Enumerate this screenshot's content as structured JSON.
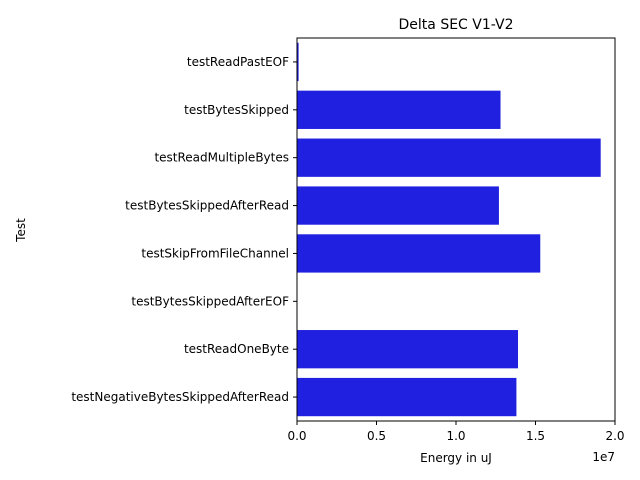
{
  "chart_data": {
    "type": "bar",
    "orientation": "horizontal",
    "title": "Delta SEC V1-V2",
    "xlabel": "Energy in uJ",
    "ylabel": "Test",
    "x_scale_label": "1e7",
    "xlim": [
      0,
      20000000
    ],
    "xticks": [
      0,
      5000000,
      10000000,
      15000000,
      20000000
    ],
    "xtick_labels": [
      "0.0",
      "0.5",
      "1.0",
      "1.5",
      "2.0"
    ],
    "grid": false,
    "bar_color": "#2020e0",
    "categories": [
      "testReadPastEOF",
      "testBytesSkipped",
      "testReadMultipleBytes",
      "testBytesSkippedAfterRead",
      "testSkipFromFileChannel",
      "testBytesSkippedAfterEOF",
      "testReadOneByte",
      "testNegativeBytesSkippedAfterRead"
    ],
    "values": [
      100000,
      12800000,
      19100000,
      12700000,
      15300000,
      0,
      13900000,
      13800000
    ]
  }
}
